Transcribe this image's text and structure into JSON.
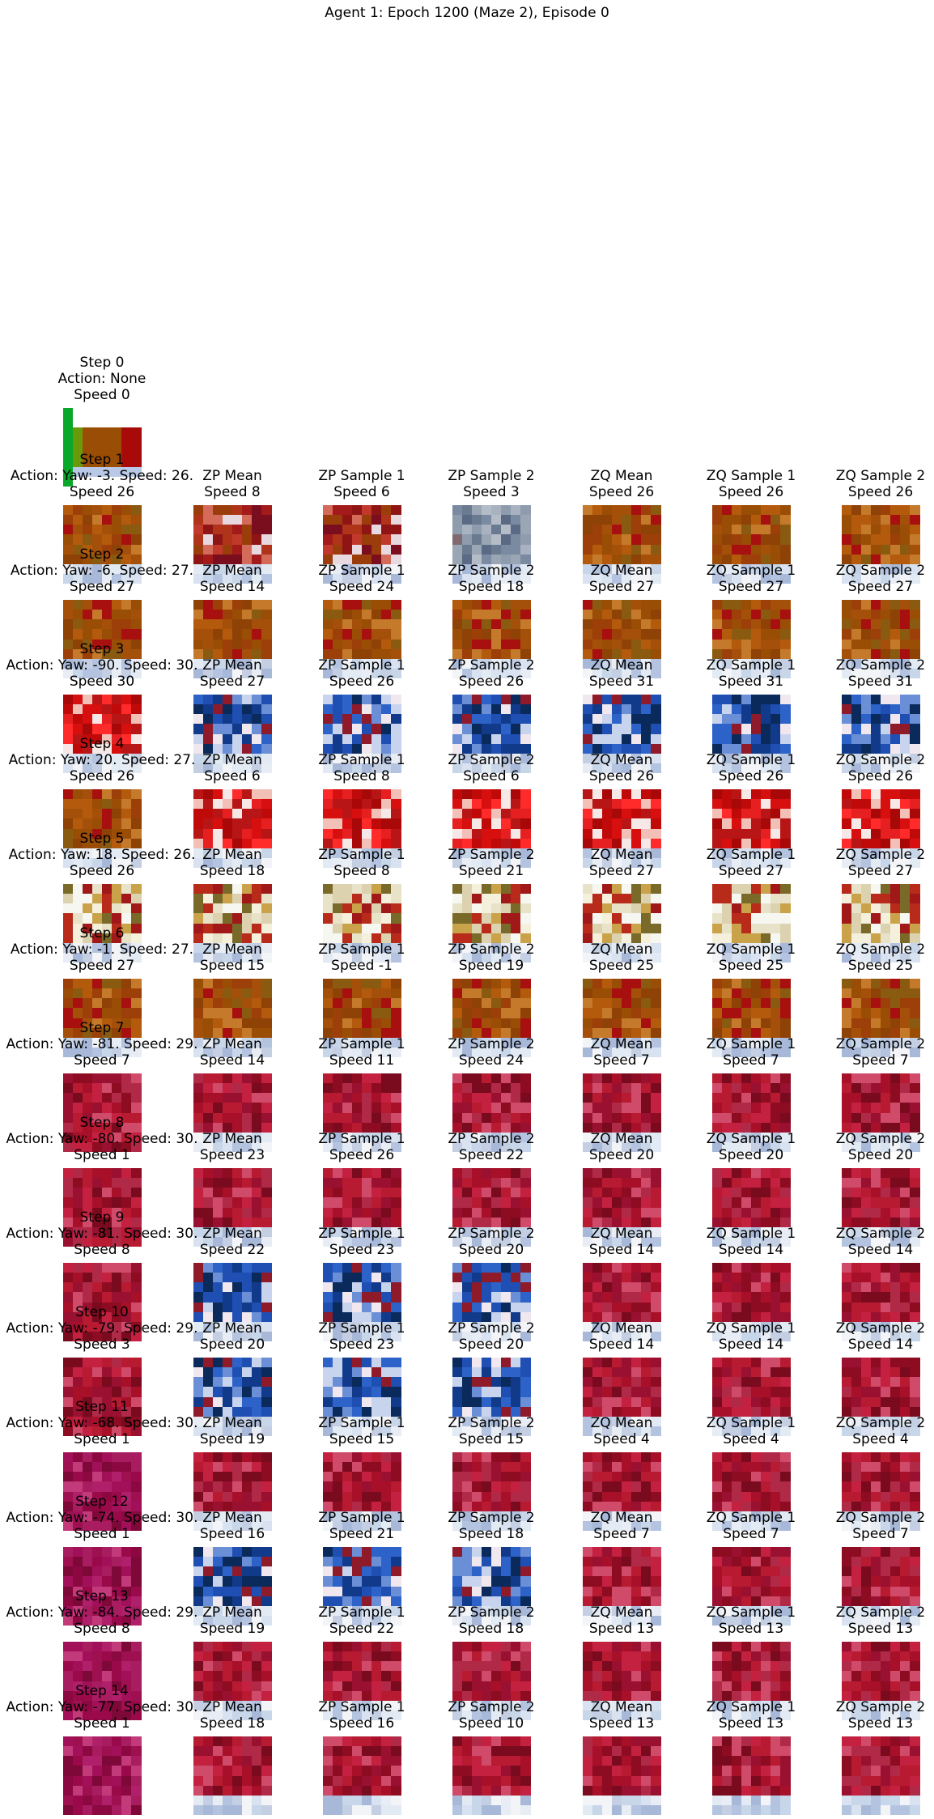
{
  "title": "Agent 1: Epoch 1200 (Maze 2), Episode 0",
  "first_step": {
    "label": "Step 0",
    "action": "Action: None",
    "speed": "Speed 0"
  },
  "columns": [
    "ZP Mean",
    "ZP Sample 1",
    "ZP Sample 2",
    "ZQ Mean",
    "ZQ Sample 1",
    "ZQ Sample 2"
  ],
  "steps": [
    {
      "label": "Step 1",
      "action": "Action: Yaw: -3. Speed: 26.",
      "speed": "Speed 26",
      "speeds": [
        "Speed 8",
        "Speed 6",
        "Speed 3",
        "Speed 26",
        "Speed 26",
        "Speed 26"
      ]
    },
    {
      "label": "Step 2",
      "action": "Action: Yaw: -6. Speed: 27.",
      "speed": "Speed 27",
      "speeds": [
        "Speed 14",
        "Speed 24",
        "Speed 18",
        "Speed 27",
        "Speed 27",
        "Speed 27"
      ]
    },
    {
      "label": "Step 3",
      "action": "Action: Yaw: -90. Speed: 30.",
      "speed": "Speed 30",
      "speeds": [
        "Speed 27",
        "Speed 26",
        "Speed 26",
        "Speed 31",
        "Speed 31",
        "Speed 31"
      ]
    },
    {
      "label": "Step 4",
      "action": "Action: Yaw: 20. Speed: 27.",
      "speed": "Speed 26",
      "speeds": [
        "Speed 6",
        "Speed 8",
        "Speed 6",
        "Speed 26",
        "Speed 26",
        "Speed 26"
      ]
    },
    {
      "label": "Step 5",
      "action": "Action: Yaw: 18. Speed: 26.",
      "speed": "Speed 26",
      "speeds": [
        "Speed 18",
        "Speed 8",
        "Speed 21",
        "Speed 27",
        "Speed 27",
        "Speed 27"
      ]
    },
    {
      "label": "Step 6",
      "action": "Action: Yaw: -1. Speed: 27.",
      "speed": "Speed 27",
      "speeds": [
        "Speed 15",
        "Speed -1",
        "Speed 19",
        "Speed 25",
        "Speed 25",
        "Speed 25"
      ]
    },
    {
      "label": "Step 7",
      "action": "Action: Yaw: -81. Speed: 29.",
      "speed": "Speed 7",
      "speeds": [
        "Speed 14",
        "Speed 11",
        "Speed 24",
        "Speed 7",
        "Speed 7",
        "Speed 7"
      ]
    },
    {
      "label": "Step 8",
      "action": "Action: Yaw: -80. Speed: 30.",
      "speed": "Speed 1",
      "speeds": [
        "Speed 23",
        "Speed 26",
        "Speed 22",
        "Speed 20",
        "Speed 20",
        "Speed 20"
      ]
    },
    {
      "label": "Step 9",
      "action": "Action: Yaw: -81. Speed: 30.",
      "speed": "Speed 8",
      "speeds": [
        "Speed 22",
        "Speed 23",
        "Speed 20",
        "Speed 14",
        "Speed 14",
        "Speed 14"
      ]
    },
    {
      "label": "Step 10",
      "action": "Action: Yaw: -79. Speed: 29.",
      "speed": "Speed 3",
      "speeds": [
        "Speed 20",
        "Speed 23",
        "Speed 20",
        "Speed 14",
        "Speed 14",
        "Speed 14"
      ]
    },
    {
      "label": "Step 11",
      "action": "Action: Yaw: -68. Speed: 30.",
      "speed": "Speed 1",
      "speeds": [
        "Speed 19",
        "Speed 15",
        "Speed 15",
        "Speed 4",
        "Speed 4",
        "Speed 4"
      ]
    },
    {
      "label": "Step 12",
      "action": "Action: Yaw: -74. Speed: 30.",
      "speed": "Speed 1",
      "speeds": [
        "Speed 16",
        "Speed 21",
        "Speed 18",
        "Speed 7",
        "Speed 7",
        "Speed 7"
      ]
    },
    {
      "label": "Step 13",
      "action": "Action: Yaw: -84. Speed: 29.",
      "speed": "Speed 8",
      "speeds": [
        "Speed 19",
        "Speed 22",
        "Speed 18",
        "Speed 13",
        "Speed 13",
        "Speed 13"
      ]
    },
    {
      "label": "Step 14",
      "action": "Action: Yaw: -77. Speed: 30.",
      "speed": "Speed 1",
      "speeds": [
        "Speed 18",
        "Speed 16",
        "Speed 10",
        "Speed 13",
        "Speed 13",
        "Speed 13"
      ]
    }
  ],
  "palettes": {
    "warm": [
      "#8f1414",
      "#a31a1a",
      "#b0341a",
      "#9a3d0a",
      "#c0392b",
      "#7a0e1e",
      "#d46a5a",
      "#e8d9e0"
    ],
    "orange": [
      "#9a4d05",
      "#a5500a",
      "#8e4206",
      "#b35a0c",
      "#9c3f08",
      "#a81010",
      "#c47a2a",
      "#8a5a10"
    ],
    "blue": [
      "#1f4fb3",
      "#123a8a",
      "#0b2a5c",
      "#2d63c8",
      "#6a8fd6",
      "#c8d4ee",
      "#8e1a2a",
      "#f0e8ee"
    ],
    "red": [
      "#d80f0f",
      "#c00a0a",
      "#e62020",
      "#a80808",
      "#f3c0b8",
      "#f7e8e8",
      "#b81616",
      "#ff2a2a"
    ],
    "cream": [
      "#e8e2c8",
      "#f4f0dc",
      "#c9a24a",
      "#7a6a2a",
      "#b82a1a",
      "#f7f7f2",
      "#a01818",
      "#dcd2b0"
    ],
    "crimson": [
      "#a8102a",
      "#b81a32",
      "#8e0c22",
      "#c42040",
      "#9a1030",
      "#d04a6a",
      "#7a0a1e",
      "#b02a48"
    ],
    "magenta": [
      "#9a0a4a",
      "#a3105a",
      "#8c0840",
      "#b0206a",
      "#9e1050",
      "#c23a7a",
      "#7e0838",
      "#a81c60"
    ],
    "pale": [
      "#c8d6ea",
      "#e2eaf4",
      "#b4c4e0",
      "#d8e2f0",
      "#f2f4f8",
      "#a8b8d8",
      "#c4cfe4",
      "#e8ecf4"
    ],
    "grey": [
      "#7a8aa0",
      "#8e9cae",
      "#6a7a90",
      "#9aa6b4",
      "#5a6a84",
      "#a8b2c0",
      "#7e6a70",
      "#b4bcc8"
    ]
  }
}
